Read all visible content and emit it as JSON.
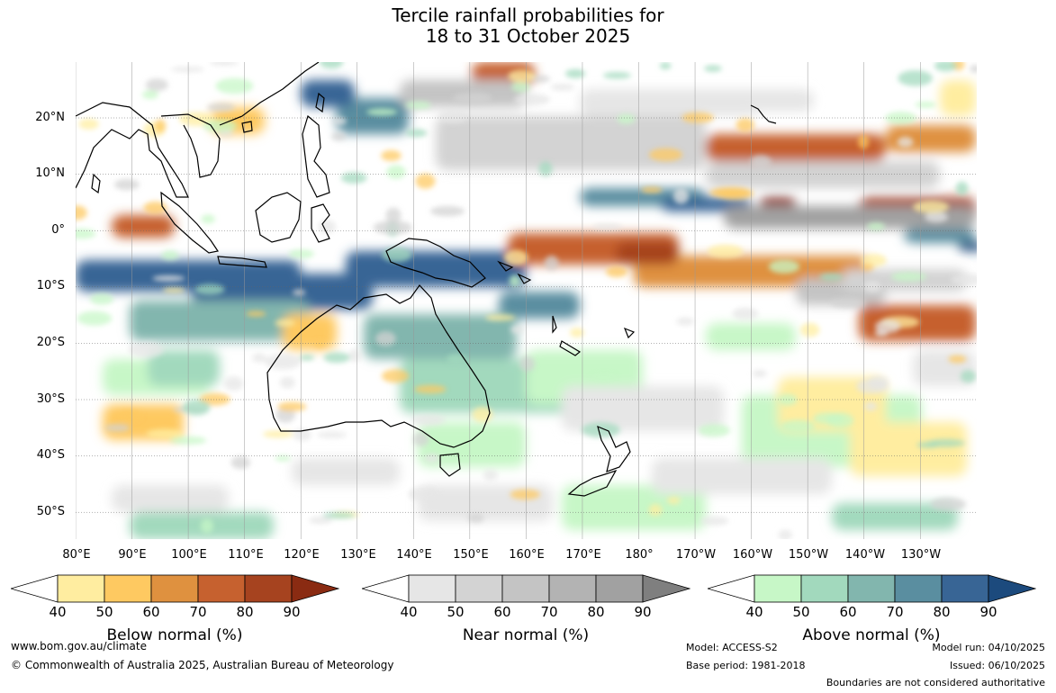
{
  "title": {
    "line1": "Tercile rainfall probabilities for",
    "line2": "18 to 31 October 2025"
  },
  "map": {
    "lat_labels": [
      "20°N",
      "10°N",
      "0°",
      "10°S",
      "20°S",
      "30°S",
      "40°S",
      "50°S"
    ],
    "lon_labels": [
      "80°E",
      "90°E",
      "100°E",
      "110°E",
      "120°E",
      "130°E",
      "140°E",
      "150°E",
      "160°E",
      "170°E",
      "180°",
      "170°W",
      "160°W",
      "150°W",
      "140°W",
      "130°W"
    ]
  },
  "colorbars": [
    {
      "title": "Below normal (%)",
      "ticks": [
        "40",
        "50",
        "60",
        "70",
        "80",
        "90"
      ],
      "colors": [
        "#ffeda0",
        "#fec961",
        "#df913f",
        "#c6612f",
        "#a6431f",
        "#8a2b12"
      ]
    },
    {
      "title": "Near normal (%)",
      "ticks": [
        "40",
        "50",
        "60",
        "70",
        "80",
        "90"
      ],
      "colors": [
        "#e6e6e6",
        "#d3d3d3",
        "#c4c4c4",
        "#b3b3b3",
        "#a1a1a1",
        "#7f7f7f"
      ]
    },
    {
      "title": "Above normal (%)",
      "ticks": [
        "40",
        "50",
        "60",
        "70",
        "80",
        "90"
      ],
      "colors": [
        "#c7f7c7",
        "#a2d9bd",
        "#82b6ae",
        "#5a8ea0",
        "#386595",
        "#1c4a7d"
      ]
    }
  ],
  "footer": {
    "website": "www.bom.gov.au/climate",
    "copyright": "© Commonwealth of Australia 2025, Australian Bureau of Meteorology",
    "model": "Model: ACCESS-S2",
    "base_period": "Base period: 1981-2018",
    "model_run": "Model run: 04/10/2025",
    "issued": "Issued: 06/10/2025",
    "disclaimer": "Boundaries are not considered authoritative"
  }
}
